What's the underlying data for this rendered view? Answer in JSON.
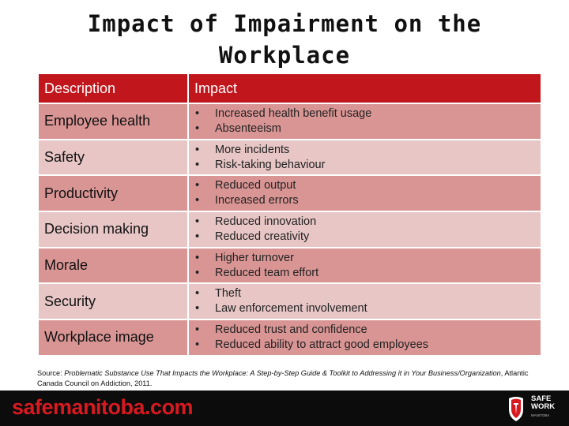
{
  "title": "Impact of Impairment on the Workplace",
  "table": {
    "headers": [
      "Description",
      "Impact"
    ],
    "rows": [
      {
        "description": "Employee health",
        "impacts": [
          "Increased health benefit usage",
          "Absenteeism"
        ]
      },
      {
        "description": "Safety",
        "impacts": [
          "More incidents",
          "Risk-taking behaviour"
        ]
      },
      {
        "description": "Productivity",
        "impacts": [
          "Reduced output",
          "Increased errors"
        ]
      },
      {
        "description": "Decision making",
        "impacts": [
          "Reduced innovation",
          "Reduced creativity"
        ]
      },
      {
        "description": "Morale",
        "impacts": [
          "Higher turnover",
          "Reduced team effort"
        ]
      },
      {
        "description": "Security",
        "impacts": [
          "Theft",
          "Law enforcement involvement"
        ]
      },
      {
        "description": "Workplace image",
        "impacts": [
          "Reduced trust and confidence",
          "Reduced ability to attract good employees"
        ]
      }
    ]
  },
  "source": {
    "prefix": "Source: ",
    "title_italic": "Problematic Substance Use That Impacts the Workplace: A Step-by-Step Guide & Toolkit to Addressing it in Your Business/Organization",
    "suffix": ", Atlantic Canada Council on Addiction, 2011."
  },
  "footer": {
    "brand": "safemanitoba.com",
    "logo_line1": "SAFE",
    "logo_line2": "WORK",
    "logo_sub": "MANITOBA"
  },
  "colors": {
    "header_red": "#c0161c",
    "row_dark": "#d99594",
    "row_light": "#e7c6c5",
    "brand_red": "#d71920"
  }
}
